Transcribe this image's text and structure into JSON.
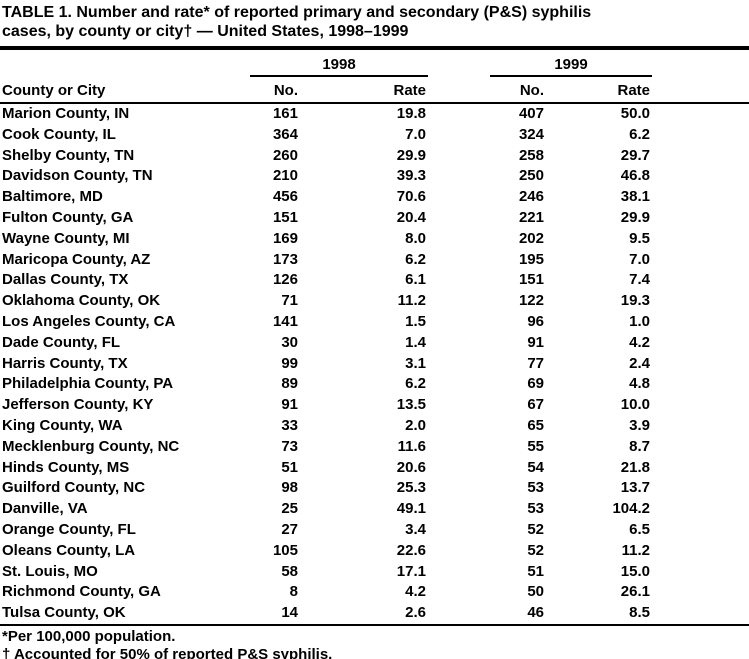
{
  "title_lines": [
    "TABLE 1. Number and rate* of reported primary and secondary (P&S) syphilis",
    "cases, by county or city† — United States, 1998–1999"
  ],
  "table": {
    "year_groups": [
      "1998",
      "1999"
    ],
    "columns": [
      "County or City",
      "No.",
      "Rate",
      "No.",
      "Rate"
    ],
    "rows": [
      [
        "Marion County, IN",
        "161",
        "19.8",
        "407",
        "50.0"
      ],
      [
        "Cook County, IL",
        "364",
        "7.0",
        "324",
        "6.2"
      ],
      [
        "Shelby County, TN",
        "260",
        "29.9",
        "258",
        "29.7"
      ],
      [
        "Davidson County, TN",
        "210",
        "39.3",
        "250",
        "46.8"
      ],
      [
        "Baltimore, MD",
        "456",
        "70.6",
        "246",
        "38.1"
      ],
      [
        "Fulton County, GA",
        "151",
        "20.4",
        "221",
        "29.9"
      ],
      [
        "Wayne County, MI",
        "169",
        "8.0",
        "202",
        "9.5"
      ],
      [
        "Maricopa County, AZ",
        "173",
        "6.2",
        "195",
        "7.0"
      ],
      [
        "Dallas County, TX",
        "126",
        "6.1",
        "151",
        "7.4"
      ],
      [
        "Oklahoma County, OK",
        "71",
        "11.2",
        "122",
        "19.3"
      ],
      [
        "Los Angeles County, CA",
        "141",
        "1.5",
        "96",
        "1.0"
      ],
      [
        "Dade County, FL",
        "30",
        "1.4",
        "91",
        "4.2"
      ],
      [
        "Harris County, TX",
        "99",
        "3.1",
        "77",
        "2.4"
      ],
      [
        "Philadelphia County, PA",
        "89",
        "6.2",
        "69",
        "4.8"
      ],
      [
        "Jefferson County, KY",
        "91",
        "13.5",
        "67",
        "10.0"
      ],
      [
        "King County, WA",
        "33",
        "2.0",
        "65",
        "3.9"
      ],
      [
        "Mecklenburg County, NC",
        "73",
        "11.6",
        "55",
        "8.7"
      ],
      [
        "Hinds County, MS",
        "51",
        "20.6",
        "54",
        "21.8"
      ],
      [
        "Guilford County, NC",
        "98",
        "25.3",
        "53",
        "13.7"
      ],
      [
        "Danville, VA",
        "25",
        "49.1",
        "53",
        "104.2"
      ],
      [
        "Orange County, FL",
        "27",
        "3.4",
        "52",
        "6.5"
      ],
      [
        "Oleans County, LA",
        "105",
        "22.6",
        "52",
        "11.2"
      ],
      [
        "St. Louis, MO",
        "58",
        "17.1",
        "51",
        "15.0"
      ],
      [
        "Richmond County, GA",
        "8",
        "4.2",
        "50",
        "26.1"
      ],
      [
        "Tulsa County, OK",
        "14",
        "2.6",
        "46",
        "8.5"
      ]
    ]
  },
  "footnotes": [
    "*Per 100,000 population.",
    "† Accounted for 50% of reported P&S syphilis."
  ]
}
